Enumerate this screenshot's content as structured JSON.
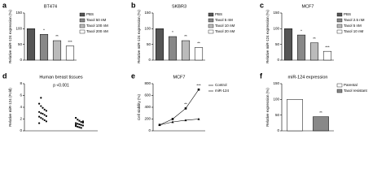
{
  "chart_data": [
    {
      "label": "a",
      "type": "bar",
      "title": "BT474",
      "y_label": "Relative miR-124 expression (%)",
      "categories": [
        "PBS",
        "Taxol 50 nM",
        "Taxol 100 nM",
        "Taxol 200 nM"
      ],
      "values": [
        100,
        82,
        62,
        45
      ],
      "colors": [
        "#555555",
        "#888888",
        "#bbbbbb",
        "#ffffff"
      ],
      "significance": [
        null,
        "*",
        "**",
        "***"
      ],
      "ylim": [
        0,
        150
      ],
      "yticks": [
        0,
        50,
        100,
        150
      ]
    },
    {
      "label": "b",
      "type": "bar",
      "title": "SKBR3",
      "y_label": "Relative miR-124 expression (%)",
      "categories": [
        "PBS",
        "Taxol 5 nM",
        "Taxol 10 nM",
        "Taxol 20 nM"
      ],
      "values": [
        100,
        75,
        62,
        40
      ],
      "colors": [
        "#555555",
        "#888888",
        "#bbbbbb",
        "#ffffff"
      ],
      "significance": [
        null,
        "*",
        "**",
        "**"
      ],
      "ylim": [
        0,
        150
      ],
      "yticks": [
        0,
        50,
        100,
        150
      ]
    },
    {
      "label": "c",
      "type": "bar",
      "title": "MCF7",
      "y_label": "Relative miR-124 expression (%)",
      "categories": [
        "PBS",
        "Taxol 2.5 nM",
        "Taxol 5 nM",
        "Taxol 10 nM"
      ],
      "values": [
        100,
        80,
        55,
        28
      ],
      "colors": [
        "#555555",
        "#888888",
        "#bbbbbb",
        "#ffffff"
      ],
      "significance": [
        null,
        "*",
        "**",
        "***"
      ],
      "ylim": [
        0,
        150
      ],
      "yticks": [
        0,
        50,
        100,
        150
      ]
    },
    {
      "label": "d",
      "type": "strip",
      "title": "Human breast tissues",
      "annotation": "p <0.001",
      "y_label": "Relative miR-124 (Fold)",
      "categories": [
        null,
        null
      ],
      "groups": [
        {
          "values": [
            4.6,
            4.2,
            3.9,
            3.6,
            3.4,
            3.2,
            3.0,
            2.9,
            2.7,
            2.5,
            2.4,
            2.2,
            2.0,
            1.8,
            1.6,
            1.3,
            5.6
          ]
        },
        {
          "values": [
            2.2,
            1.9,
            1.7,
            1.5,
            1.4,
            1.3,
            1.2,
            1.1,
            1.0,
            0.9,
            0.8,
            0.7,
            0.6,
            0.5,
            1.6,
            1.0
          ]
        }
      ],
      "ylim": [
        0,
        8
      ],
      "yticks": [
        0,
        2,
        4,
        6,
        8
      ]
    },
    {
      "label": "e",
      "type": "line",
      "title": "MCF7",
      "y_label": "Cell viability (%)",
      "categories": [
        null,
        null,
        null,
        null
      ],
      "series": [
        {
          "name": "Control",
          "color": "#000000",
          "values": [
            100,
            200,
            380,
            700
          ],
          "significance": [
            null,
            null,
            "**",
            "***"
          ]
        },
        {
          "name": "miR-124",
          "color": "#000000",
          "values": [
            100,
            150,
            180,
            200
          ]
        }
      ],
      "ylim": [
        0,
        800
      ],
      "yticks": [
        0,
        200,
        400,
        600,
        800
      ]
    },
    {
      "label": "f",
      "type": "bar",
      "title": "miR-124 expression",
      "y_label": "Relative expression (%)",
      "categories": [
        "Parental",
        "Taxol resistant"
      ],
      "values": [
        100,
        45
      ],
      "colors": [
        "#ffffff",
        "#888888"
      ],
      "significance": [
        null,
        "**"
      ],
      "ylim": [
        0,
        150
      ],
      "yticks": [
        0,
        50,
        100,
        150
      ]
    }
  ]
}
